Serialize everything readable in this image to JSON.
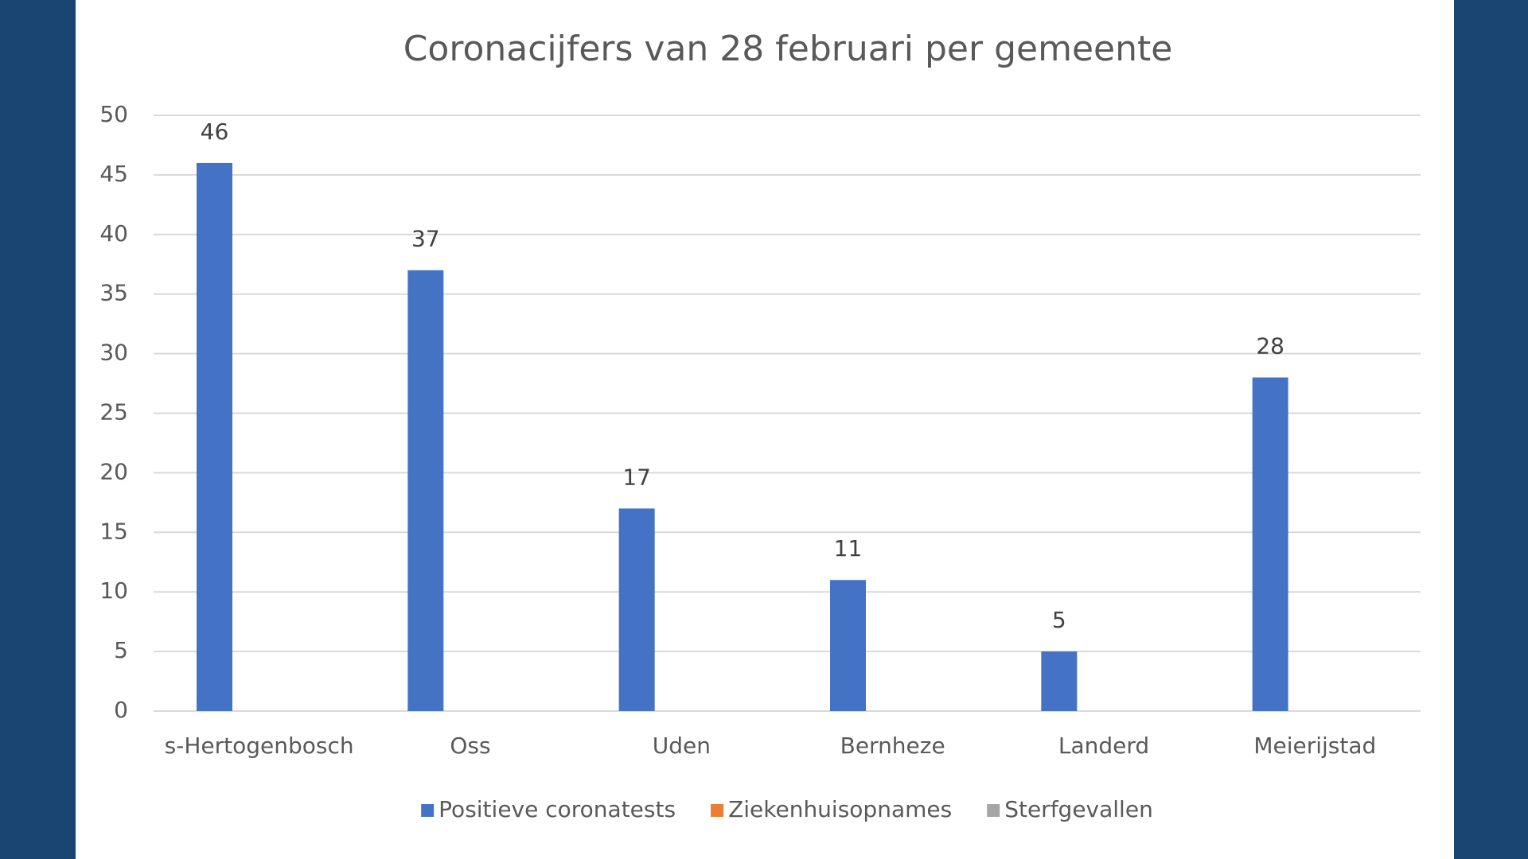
{
  "chart_data": {
    "type": "bar",
    "title": "Coronacijfers van 28 februari per gemeente",
    "categories": [
      "s-Hertogenbosch",
      "Oss",
      "Uden",
      "Bernheze",
      "Landerd",
      "Meierijstad"
    ],
    "series": [
      {
        "name": "Positieve coronatests",
        "color": "#4472c4",
        "values": [
          46,
          37,
          17,
          11,
          5,
          28
        ]
      },
      {
        "name": "Ziekenhuisopnames",
        "color": "#ed7d31",
        "values": [
          null,
          null,
          null,
          null,
          null,
          null
        ]
      },
      {
        "name": "Sterfgevallen",
        "color": "#a5a5a5",
        "values": [
          null,
          null,
          null,
          null,
          null,
          null
        ]
      }
    ],
    "ylim": [
      0,
      50
    ],
    "yticks": [
      0,
      5,
      10,
      15,
      20,
      25,
      30,
      35,
      40,
      45,
      50
    ],
    "grid": true,
    "legend": "bottom"
  }
}
